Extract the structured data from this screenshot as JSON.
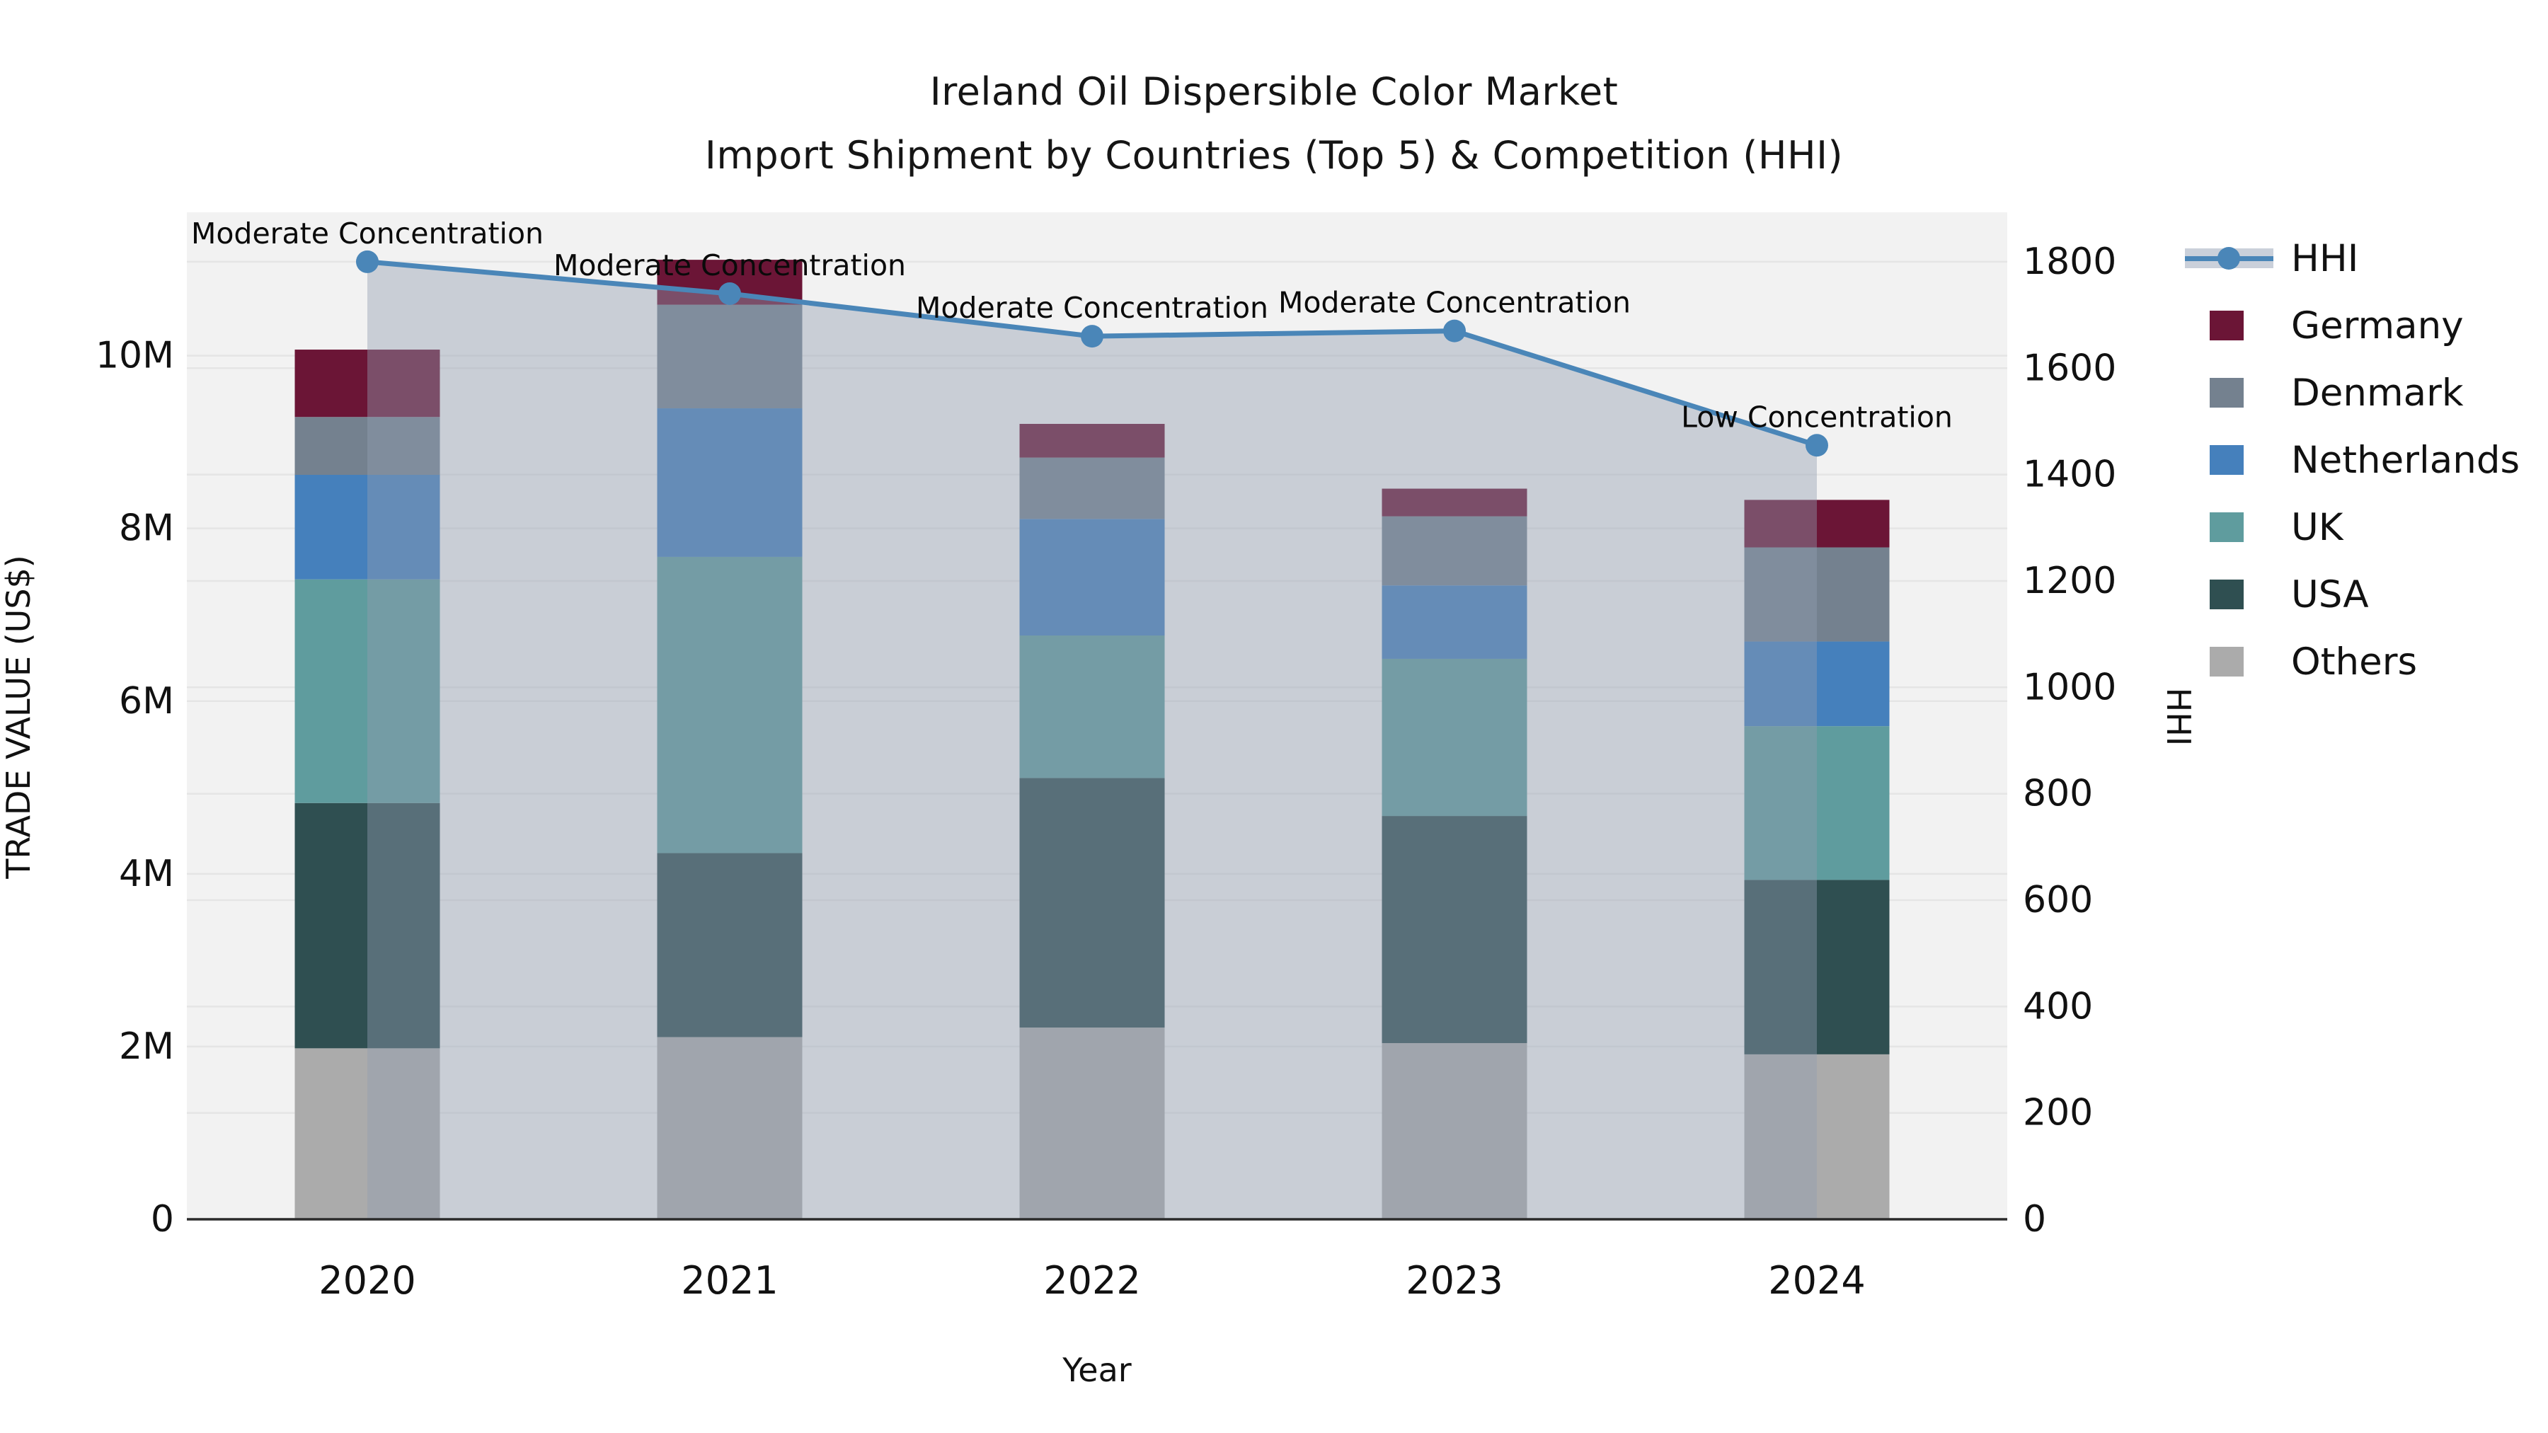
{
  "title": {
    "line1": "Ireland Oil Dispersible Color Market",
    "line2": "Import Shipment by Countries (Top 5) & Competition (HHI)"
  },
  "legend": {
    "entries": [
      {
        "label": "HHI",
        "type": "line",
        "color": "#4a86b8"
      },
      {
        "label": "Germany",
        "type": "swatch",
        "color": "#6b1536"
      },
      {
        "label": "Denmark",
        "type": "swatch",
        "color": "#74818f"
      },
      {
        "label": "Netherlands",
        "type": "swatch",
        "color": "#4580bc"
      },
      {
        "label": "UK",
        "type": "swatch",
        "color": "#5f9c9e"
      },
      {
        "label": "USA",
        "type": "swatch",
        "color": "#2f4f51"
      },
      {
        "label": "Others",
        "type": "swatch",
        "color": "#ababab"
      }
    ]
  },
  "colors": {
    "plot_background": "#f2f2f2",
    "gridline": "#e5e5e5",
    "axis_line": "#2b2b2b",
    "hhi_line": "#4a86b8",
    "hhi_area_fill": "rgba(146,157,177,0.42)"
  },
  "chart_data": {
    "type": "bar+line",
    "title": "Ireland Oil Dispersible Color Market — Import Shipment by Countries (Top 5) & Competition (HHI)",
    "categories": [
      "2020",
      "2021",
      "2022",
      "2023",
      "2024"
    ],
    "unit": "US$ millions (trade value), index points (HHI)",
    "stack_order_bottom_to_top": [
      "Others",
      "USA",
      "UK",
      "Netherlands",
      "Denmark",
      "Germany"
    ],
    "series": [
      {
        "name": "Others",
        "color": "#ababab",
        "values": [
          1.98,
          2.11,
          2.22,
          2.04,
          1.91
        ]
      },
      {
        "name": "USA",
        "color": "#2f4f51",
        "values": [
          2.84,
          2.13,
          2.89,
          2.63,
          2.02
        ]
      },
      {
        "name": "UK",
        "color": "#5f9c9e",
        "values": [
          2.59,
          3.43,
          1.65,
          1.82,
          1.78
        ]
      },
      {
        "name": "Netherlands",
        "color": "#4580bc",
        "values": [
          1.21,
          1.72,
          1.35,
          0.85,
          0.98
        ]
      },
      {
        "name": "Denmark",
        "color": "#74818f",
        "values": [
          0.67,
          1.2,
          0.71,
          0.8,
          1.09
        ]
      },
      {
        "name": "Germany",
        "color": "#6b1536",
        "values": [
          0.78,
          0.52,
          0.39,
          0.32,
          0.55
        ]
      }
    ],
    "line_series": {
      "name": "HHI",
      "color": "#4a86b8",
      "fill": "tozero",
      "fill_color": "rgba(146,157,177,0.42)",
      "values": [
        1800,
        1740,
        1660,
        1670,
        1455
      ]
    },
    "annotations": [
      {
        "category": "2020",
        "text": "Moderate Concentration"
      },
      {
        "category": "2021",
        "text": "Moderate Concentration"
      },
      {
        "category": "2022",
        "text": "Moderate Concentration"
      },
      {
        "category": "2023",
        "text": "Moderate Concentration"
      },
      {
        "category": "2024",
        "text": "Low Concentration"
      }
    ],
    "axes": {
      "x": {
        "title": "Year",
        "tick_labels": [
          "2020",
          "2021",
          "2022",
          "2023",
          "2024"
        ]
      },
      "left": {
        "title": "TRADE VALUE (US$)",
        "max": 11.66,
        "ticks": [
          {
            "value": 0,
            "label": "0"
          },
          {
            "value": 2,
            "label": "2M"
          },
          {
            "value": 4,
            "label": "4M"
          },
          {
            "value": 6,
            "label": "6M"
          },
          {
            "value": 8,
            "label": "8M"
          },
          {
            "value": 10,
            "label": "10M"
          }
        ]
      },
      "right": {
        "title": "HHI",
        "max": 1893,
        "ticks": [
          {
            "value": 0,
            "label": "0"
          },
          {
            "value": 200,
            "label": "200"
          },
          {
            "value": 400,
            "label": "400"
          },
          {
            "value": 600,
            "label": "600"
          },
          {
            "value": 800,
            "label": "800"
          },
          {
            "value": 1000,
            "label": "1000"
          },
          {
            "value": 1200,
            "label": "1200"
          },
          {
            "value": 1400,
            "label": "1400"
          },
          {
            "value": 1600,
            "label": "1600"
          },
          {
            "value": 1800,
            "label": "1800"
          }
        ]
      },
      "grid": "both"
    }
  }
}
